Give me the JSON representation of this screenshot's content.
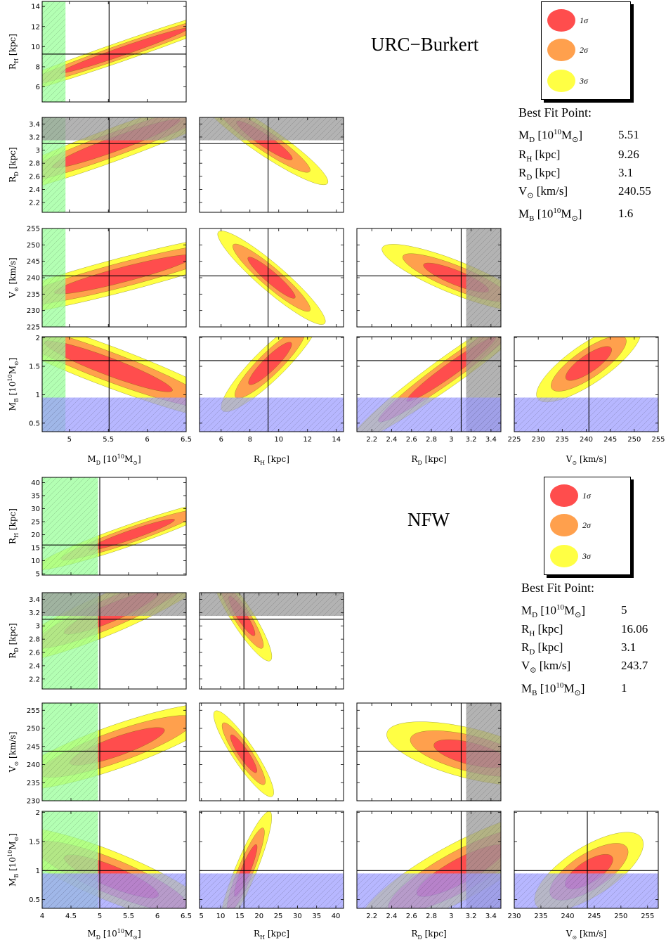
{
  "panels": [
    {
      "title": "URC−Burkert",
      "best_fit": {
        "heading": "Best Fit Point:",
        "rows": [
          {
            "label": "M_D [10^10 M_sun]",
            "value": "5.51"
          },
          {
            "label": "R_H [kpc]",
            "value": "9.26"
          },
          {
            "label": "R_D [kpc]",
            "value": "3.1"
          },
          {
            "label": "V_sun [km/s]",
            "value": "240.55"
          },
          {
            "label": "M_B [10^10 M_sun]",
            "value": "1.6"
          }
        ]
      },
      "legend": [
        "1σ",
        "2σ",
        "3σ"
      ]
    },
    {
      "title": "NFW",
      "best_fit": {
        "heading": "Best Fit Point:",
        "rows": [
          {
            "label": "M_D [10^10 M_sun]",
            "value": "5"
          },
          {
            "label": "R_H [kpc]",
            "value": "16.06"
          },
          {
            "label": "R_D [kpc]",
            "value": "3.1"
          },
          {
            "label": "V_sun [km/s]",
            "value": "243.7"
          },
          {
            "label": "M_B [10^10 M_sun]",
            "value": "1"
          }
        ]
      },
      "legend": [
        "1σ",
        "2σ",
        "3σ"
      ]
    }
  ],
  "colors": {
    "sigma1": "#ff4d4d",
    "sigma2": "#ffa04d",
    "sigma3": "#ffff44",
    "green_band": "#99ff99",
    "blue_band": "#9999ff",
    "gray_band": "#999999"
  },
  "chart_data": [
    {
      "type": "contour",
      "model": "URC−Burkert",
      "parameters": [
        "M_D",
        "R_H",
        "R_D",
        "V_sun",
        "M_B"
      ],
      "best_fit": {
        "M_D": 5.51,
        "R_H": 9.26,
        "R_D": 3.1,
        "V_sun": 240.55,
        "M_B": 1.6
      },
      "axes": {
        "M_D": {
          "label": "M_D [10^10 M_sun]",
          "range": [
            4.65,
            6.5
          ],
          "ticks": [
            5.0,
            5.5,
            6.0,
            6.5
          ]
        },
        "R_H": {
          "label": "R_H [kpc]",
          "range": [
            4.5,
            14.5
          ],
          "ticks": [
            6,
            8,
            10,
            12,
            14
          ]
        },
        "R_D": {
          "label": "R_D [kpc]",
          "range": [
            2.05,
            3.5
          ],
          "ticks": [
            2.2,
            2.4,
            2.6,
            2.8,
            3.0,
            3.2,
            3.4
          ]
        },
        "V_sun": {
          "label": "V_sun [km/s]",
          "range": [
            225,
            255
          ],
          "ticks": [
            225,
            230,
            235,
            240,
            245,
            250,
            255
          ]
        },
        "M_B": {
          "label": "M_B [10^10 M_sun]",
          "range": [
            0.35,
            2.02
          ],
          "ticks": [
            0.5,
            1.0,
            1.5,
            2.0
          ]
        }
      },
      "excluded_bands": {
        "M_D_max": 4.95,
        "R_D_min": 3.15,
        "M_B_max": 0.95
      },
      "contours": [
        {
          "x": "M_D",
          "y": "R_H",
          "cx": 5.7,
          "cy": 9.6,
          "sx": 0.55,
          "sy": 1.5,
          "rho": 0.98
        },
        {
          "x": "M_D",
          "y": "R_D",
          "cx": 5.6,
          "cy": 3.1,
          "sx": 0.55,
          "sy": 0.25,
          "rho": 0.95
        },
        {
          "x": "R_H",
          "y": "R_D",
          "cx": 9.0,
          "cy": 3.15,
          "sx": 1.3,
          "sy": 0.2,
          "rho": -0.93
        },
        {
          "x": "M_D",
          "y": "V_sun",
          "cx": 5.7,
          "cy": 241.0,
          "sx": 0.6,
          "sy": 4.0,
          "rho": 0.92
        },
        {
          "x": "R_H",
          "y": "V_sun",
          "cx": 9.5,
          "cy": 240.0,
          "sx": 1.1,
          "sy": 4.2,
          "rho": -0.93
        },
        {
          "x": "R_D",
          "y": "V_sun",
          "cx": 3.05,
          "cy": 240.0,
          "sx": 0.22,
          "sy": 3.0,
          "rho": -0.85
        },
        {
          "x": "M_D",
          "y": "M_B",
          "cx": 5.5,
          "cy": 1.5,
          "sx": 0.55,
          "sy": 0.3,
          "rho": -0.93
        },
        {
          "x": "R_H",
          "y": "M_B",
          "cx": 9.4,
          "cy": 1.55,
          "sx": 1.0,
          "sy": 0.25,
          "rho": 0.9
        },
        {
          "x": "R_D",
          "y": "M_B",
          "cx": 3.0,
          "cy": 1.45,
          "sx": 0.3,
          "sy": 0.38,
          "rho": 0.97
        },
        {
          "x": "V_sun",
          "y": "M_B",
          "cx": 240.5,
          "cy": 1.55,
          "sx": 3.2,
          "sy": 0.2,
          "rho": 0.8
        }
      ]
    },
    {
      "type": "contour",
      "model": "NFW",
      "parameters": [
        "M_D",
        "R_H",
        "R_D",
        "V_sun",
        "M_B"
      ],
      "best_fit": {
        "M_D": 5.0,
        "R_H": 16.06,
        "R_D": 3.1,
        "V_sun": 243.7,
        "M_B": 1.0
      },
      "axes": {
        "M_D": {
          "label": "M_D [10^10 M_sun]",
          "range": [
            4.0,
            6.5
          ],
          "ticks": [
            4.0,
            4.5,
            5.0,
            5.5,
            6.0,
            6.5
          ]
        },
        "R_H": {
          "label": "R_H [kpc]",
          "range": [
            4.5,
            42
          ],
          "ticks": [
            5,
            10,
            15,
            20,
            25,
            30,
            35,
            40
          ]
        },
        "R_D": {
          "label": "R_D [kpc]",
          "range": [
            2.05,
            3.5
          ],
          "ticks": [
            2.2,
            2.4,
            2.6,
            2.8,
            3.0,
            3.2,
            3.4
          ]
        },
        "V_sun": {
          "label": "V_sun [km/s]",
          "range": [
            230,
            257
          ],
          "ticks": [
            230,
            235,
            240,
            245,
            250,
            255
          ]
        },
        "M_B": {
          "label": "M_B [10^10 M_sun]",
          "range": [
            0.35,
            2.02
          ],
          "ticks": [
            0.5,
            1.0,
            1.5,
            2.0
          ]
        }
      },
      "excluded_bands": {
        "M_D_max": 4.97,
        "R_D_min": 3.15,
        "M_B_max": 0.95
      },
      "contours": [
        {
          "x": "M_D",
          "y": "R_H",
          "cx": 5.55,
          "cy": 20.0,
          "sx": 0.5,
          "sy": 4.0,
          "rho": 0.95
        },
        {
          "x": "M_D",
          "y": "R_D",
          "cx": 5.2,
          "cy": 3.2,
          "sx": 0.55,
          "sy": 0.22,
          "rho": 0.9
        },
        {
          "x": "R_H",
          "y": "R_D",
          "cx": 15.5,
          "cy": 3.15,
          "sx": 2.3,
          "sy": 0.2,
          "rho": -0.9
        },
        {
          "x": "M_D",
          "y": "V_sun",
          "cx": 5.3,
          "cy": 245.0,
          "sx": 0.55,
          "sy": 3.5,
          "rho": 0.85
        },
        {
          "x": "R_H",
          "y": "V_sun",
          "cx": 16.0,
          "cy": 243.0,
          "sx": 2.3,
          "sy": 3.5,
          "rho": -0.9
        },
        {
          "x": "R_D",
          "y": "V_sun",
          "cx": 3.2,
          "cy": 243.0,
          "sx": 0.25,
          "sy": 2.6,
          "rho": -0.6
        },
        {
          "x": "M_D",
          "y": "M_B",
          "cx": 5.2,
          "cy": 0.9,
          "sx": 0.55,
          "sy": 0.25,
          "rho": -0.85
        },
        {
          "x": "R_H",
          "y": "M_B",
          "cx": 16.5,
          "cy": 1.0,
          "sx": 2.0,
          "sy": 0.3,
          "rho": 0.9
        },
        {
          "x": "R_D",
          "y": "M_B",
          "cx": 3.1,
          "cy": 1.0,
          "sx": 0.3,
          "sy": 0.3,
          "rho": 0.85
        },
        {
          "x": "V_sun",
          "y": "M_B",
          "cx": 244.0,
          "cy": 0.98,
          "sx": 3.0,
          "sy": 0.2,
          "rho": 0.7
        }
      ]
    }
  ]
}
